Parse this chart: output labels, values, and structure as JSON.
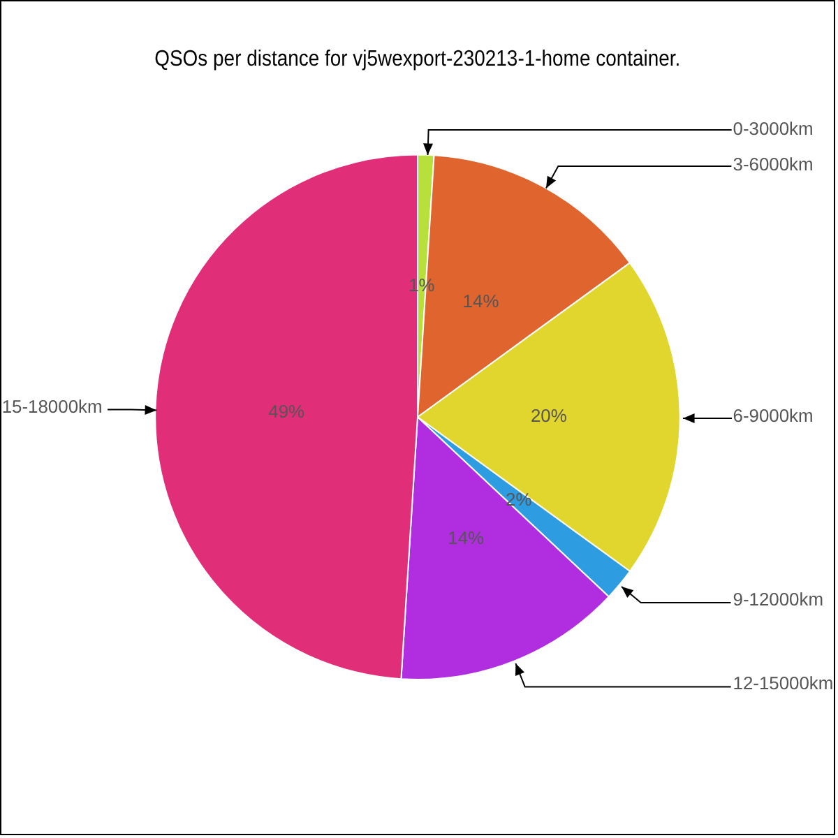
{
  "chart_data": {
    "type": "pie",
    "title": "QSOs per distance for vj5wexport-230213-1-home container.",
    "categories": [
      "0-3000km",
      "3-6000km",
      "6-9000km",
      "9-12000km",
      "12-15000km",
      "15-18000km"
    ],
    "values": [
      1,
      14,
      20,
      2,
      14,
      49
    ],
    "colors": [
      "#b8e03a",
      "#e0642e",
      "#e0d62e",
      "#2e9ce0",
      "#b02ee0",
      "#e02e78"
    ],
    "value_labels": [
      "1%",
      "14%",
      "20%",
      "2%",
      "14%",
      "49%"
    ]
  }
}
